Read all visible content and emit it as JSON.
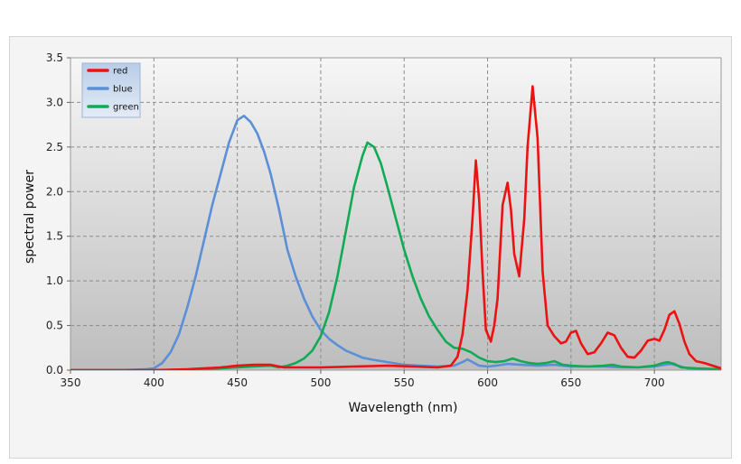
{
  "chart_data": {
    "type": "line",
    "title": "",
    "xlabel": "Wavelength (nm)",
    "ylabel": "spectral power",
    "xlim": [
      350,
      740
    ],
    "ylim": [
      0,
      3.5
    ],
    "xticks": [
      "350",
      "400",
      "450",
      "500",
      "550",
      "600",
      "650",
      "700"
    ],
    "yticks": [
      "0.0",
      "0.5",
      "1.0",
      "1.5",
      "2.0",
      "2.5",
      "3.0",
      "3.5"
    ],
    "grid": true,
    "legend_position": "top-left",
    "series": [
      {
        "name": "red",
        "color": "#ee1111",
        "points": [
          [
            350,
            0
          ],
          [
            400,
            0
          ],
          [
            420,
            0.01
          ],
          [
            440,
            0.03
          ],
          [
            450,
            0.05
          ],
          [
            460,
            0.06
          ],
          [
            470,
            0.06
          ],
          [
            478,
            0.03
          ],
          [
            490,
            0.03
          ],
          [
            500,
            0.03
          ],
          [
            520,
            0.04
          ],
          [
            540,
            0.05
          ],
          [
            555,
            0.04
          ],
          [
            570,
            0.03
          ],
          [
            578,
            0.05
          ],
          [
            582,
            0.15
          ],
          [
            585,
            0.4
          ],
          [
            588,
            0.9
          ],
          [
            591,
            1.7
          ],
          [
            593,
            2.35
          ],
          [
            595,
            1.9
          ],
          [
            597,
            1.1
          ],
          [
            599,
            0.45
          ],
          [
            602,
            0.32
          ],
          [
            604,
            0.5
          ],
          [
            606,
            0.8
          ],
          [
            609,
            1.85
          ],
          [
            612,
            2.1
          ],
          [
            614,
            1.8
          ],
          [
            616,
            1.3
          ],
          [
            619,
            1.05
          ],
          [
            622,
            1.7
          ],
          [
            624,
            2.5
          ],
          [
            627,
            3.18
          ],
          [
            630,
            2.6
          ],
          [
            633,
            1.1
          ],
          [
            636,
            0.5
          ],
          [
            640,
            0.38
          ],
          [
            644,
            0.3
          ],
          [
            647,
            0.32
          ],
          [
            650,
            0.42
          ],
          [
            653,
            0.44
          ],
          [
            656,
            0.3
          ],
          [
            660,
            0.18
          ],
          [
            664,
            0.2
          ],
          [
            668,
            0.3
          ],
          [
            672,
            0.42
          ],
          [
            676,
            0.39
          ],
          [
            680,
            0.25
          ],
          [
            684,
            0.15
          ],
          [
            688,
            0.14
          ],
          [
            692,
            0.22
          ],
          [
            696,
            0.33
          ],
          [
            700,
            0.35
          ],
          [
            703,
            0.33
          ],
          [
            706,
            0.45
          ],
          [
            709,
            0.62
          ],
          [
            712,
            0.66
          ],
          [
            715,
            0.52
          ],
          [
            718,
            0.32
          ],
          [
            721,
            0.18
          ],
          [
            725,
            0.1
          ],
          [
            730,
            0.08
          ],
          [
            735,
            0.05
          ],
          [
            740,
            0.02
          ]
        ]
      },
      {
        "name": "blue",
        "color": "#5b8fd6",
        "points": [
          [
            350,
            0
          ],
          [
            380,
            0
          ],
          [
            395,
            0.01
          ],
          [
            400,
            0.02
          ],
          [
            405,
            0.08
          ],
          [
            410,
            0.2
          ],
          [
            415,
            0.4
          ],
          [
            420,
            0.7
          ],
          [
            425,
            1.05
          ],
          [
            430,
            1.45
          ],
          [
            435,
            1.85
          ],
          [
            440,
            2.2
          ],
          [
            445,
            2.55
          ],
          [
            450,
            2.8
          ],
          [
            454,
            2.85
          ],
          [
            458,
            2.78
          ],
          [
            462,
            2.65
          ],
          [
            466,
            2.45
          ],
          [
            470,
            2.2
          ],
          [
            475,
            1.8
          ],
          [
            480,
            1.35
          ],
          [
            485,
            1.05
          ],
          [
            490,
            0.8
          ],
          [
            495,
            0.6
          ],
          [
            500,
            0.45
          ],
          [
            505,
            0.35
          ],
          [
            510,
            0.28
          ],
          [
            515,
            0.22
          ],
          [
            520,
            0.18
          ],
          [
            525,
            0.14
          ],
          [
            530,
            0.12
          ],
          [
            540,
            0.09
          ],
          [
            550,
            0.06
          ],
          [
            560,
            0.05
          ],
          [
            570,
            0.04
          ],
          [
            580,
            0.05
          ],
          [
            585,
            0.09
          ],
          [
            588,
            0.12
          ],
          [
            590,
            0.1
          ],
          [
            595,
            0.05
          ],
          [
            600,
            0.04
          ],
          [
            605,
            0.05
          ],
          [
            612,
            0.07
          ],
          [
            620,
            0.06
          ],
          [
            630,
            0.05
          ],
          [
            640,
            0.06
          ],
          [
            650,
            0.04
          ],
          [
            660,
            0.04
          ],
          [
            670,
            0.04
          ],
          [
            680,
            0.03
          ],
          [
            690,
            0.03
          ],
          [
            700,
            0.04
          ],
          [
            706,
            0.06
          ],
          [
            710,
            0.07
          ],
          [
            714,
            0.05
          ],
          [
            720,
            0.02
          ],
          [
            730,
            0.01
          ],
          [
            740,
            0.01
          ]
        ]
      },
      {
        "name": "green",
        "color": "#11aa55",
        "points": [
          [
            350,
            0
          ],
          [
            400,
            0
          ],
          [
            430,
            0.01
          ],
          [
            450,
            0.03
          ],
          [
            460,
            0.04
          ],
          [
            470,
            0.05
          ],
          [
            475,
            0.03
          ],
          [
            480,
            0.05
          ],
          [
            485,
            0.08
          ],
          [
            490,
            0.13
          ],
          [
            495,
            0.22
          ],
          [
            500,
            0.38
          ],
          [
            505,
            0.65
          ],
          [
            510,
            1.05
          ],
          [
            515,
            1.55
          ],
          [
            520,
            2.05
          ],
          [
            525,
            2.4
          ],
          [
            528,
            2.55
          ],
          [
            532,
            2.5
          ],
          [
            536,
            2.32
          ],
          [
            540,
            2.05
          ],
          [
            545,
            1.7
          ],
          [
            550,
            1.35
          ],
          [
            555,
            1.05
          ],
          [
            560,
            0.8
          ],
          [
            565,
            0.6
          ],
          [
            570,
            0.45
          ],
          [
            575,
            0.32
          ],
          [
            580,
            0.25
          ],
          [
            585,
            0.24
          ],
          [
            590,
            0.2
          ],
          [
            595,
            0.14
          ],
          [
            600,
            0.1
          ],
          [
            605,
            0.09
          ],
          [
            610,
            0.1
          ],
          [
            615,
            0.13
          ],
          [
            620,
            0.1
          ],
          [
            625,
            0.08
          ],
          [
            630,
            0.07
          ],
          [
            635,
            0.08
          ],
          [
            640,
            0.1
          ],
          [
            645,
            0.06
          ],
          [
            650,
            0.05
          ],
          [
            660,
            0.04
          ],
          [
            670,
            0.05
          ],
          [
            675,
            0.06
          ],
          [
            680,
            0.04
          ],
          [
            690,
            0.03
          ],
          [
            700,
            0.05
          ],
          [
            705,
            0.08
          ],
          [
            708,
            0.09
          ],
          [
            712,
            0.07
          ],
          [
            716,
            0.03
          ],
          [
            725,
            0.02
          ],
          [
            740,
            0.01
          ]
        ]
      }
    ]
  }
}
